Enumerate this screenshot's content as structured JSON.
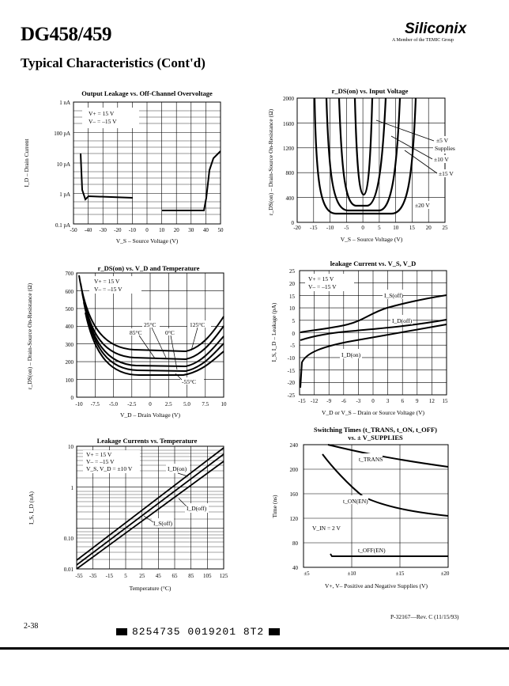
{
  "header": {
    "part_number": "DG458/459",
    "brand": "Siliconix",
    "brand_sub": "A Member of the TEMIC Group",
    "section_title": "Typical Characteristics (Cont'd)"
  },
  "footer": {
    "page": "2-38",
    "revision": "P-32167—Rev. C (11/15/93)",
    "barcode_text": "8254735 0019201 8T2"
  },
  "charts": [
    {
      "id": "output-leakage",
      "title": "Output Leakage vs. Off-Channel Overvoltage",
      "ylabel": "I_D – Drain Current",
      "xlabel": "V_S – Source Voltage (V)",
      "xticks": [
        "-50",
        "-40",
        "-30",
        "-20",
        "-10",
        "0",
        "10",
        "20",
        "30",
        "40",
        "50"
      ],
      "yticks": [
        "0.1 pA",
        "1 pA",
        "10 pA",
        "100 pA",
        "1 nA"
      ],
      "annotations": [
        "V+ = 15 V",
        "V– = –15 V"
      ]
    },
    {
      "id": "rds-vs-vin",
      "title": "r_DS(on) vs. Input Voltage",
      "ylabel": "r_DS(on) – Drain-Source On-Resistance (Ω)",
      "xlabel": "V_S – Source Voltage (V)",
      "xticks": [
        "-20",
        "-15",
        "-10",
        "-5",
        "0",
        "5",
        "10",
        "15",
        "20",
        "25"
      ],
      "yticks": [
        "0",
        "400",
        "800",
        "1200",
        "1600",
        "2000"
      ],
      "annotations": [
        "±5 V",
        "Supplies",
        "±10 V",
        "±15 V",
        "±20 V"
      ]
    },
    {
      "id": "rds-vs-vd-temp",
      "title": "r_DS(on) vs. V_D and Temperature",
      "ylabel": "r_DS(on) – Drain-Source On-Resistance (Ω)",
      "xlabel": "V_D – Drain Voltage (V)",
      "xticks": [
        "-10",
        "-7.5",
        "-5.0",
        "-2.5",
        "0",
        "2.5",
        "5.0",
        "7.5",
        "10"
      ],
      "yticks": [
        "0",
        "100",
        "200",
        "300",
        "400",
        "500",
        "600",
        "700"
      ],
      "annotations": [
        "V+ = 15 V",
        "V– = –15 V",
        "25°C",
        "125°C",
        "85°C",
        "0°C",
        "-55°C"
      ]
    },
    {
      "id": "leakage-vs-vs-vd",
      "title": "leakage Current vs. V_S, V_D",
      "ylabel": "I_S, I_D – Leakage (pA)",
      "xlabel": "V_D or V_S – Drain or Source Voltage (V)",
      "xticks": [
        "-15",
        "-12",
        "-9",
        "-6",
        "-3",
        "0",
        "3",
        "6",
        "9",
        "12",
        "15"
      ],
      "yticks": [
        "25",
        "20",
        "15",
        "10",
        "5",
        "0",
        "-5",
        "-10",
        "-15",
        "-20",
        "-25"
      ],
      "annotations": [
        "V+ = 15 V",
        "V– = –15 V",
        "I_S(off)",
        "I_D(off)",
        "I_D(on)"
      ]
    },
    {
      "id": "leakage-vs-temp",
      "title": "Leakage Currents vs. Temperature",
      "ylabel": "I_S, I_D (nA)",
      "xlabel": "Temperature (°C)",
      "xticks": [
        "-55",
        "-35",
        "-15",
        "5",
        "25",
        "45",
        "65",
        "85",
        "105",
        "125"
      ],
      "yticks": [
        "10",
        "1",
        "0.10",
        "0.01"
      ],
      "annotations": [
        "V+ = 15 V",
        "V– = –15 V",
        "V_S, V_D = ±10 V",
        "I_D(on)",
        "I_D(off)",
        "I_S(off)"
      ]
    },
    {
      "id": "switching-times",
      "title": "Switching Times (t_TRANS, t_ON, t_OFF)",
      "title2": "vs. ± V_SUPPLIES",
      "ylabel": "Time (ns)",
      "xlabel": "V+, V– Positive and Negative Supplies (V)",
      "xticks": [
        "±5",
        "±10",
        "±15",
        "±20"
      ],
      "yticks": [
        "240",
        "200",
        "160",
        "120",
        "80",
        "40"
      ],
      "annotations": [
        "V_IN = 2 V",
        "t_TRANS",
        "t_ON(EN)",
        "t_OFF(EN)"
      ]
    }
  ]
}
